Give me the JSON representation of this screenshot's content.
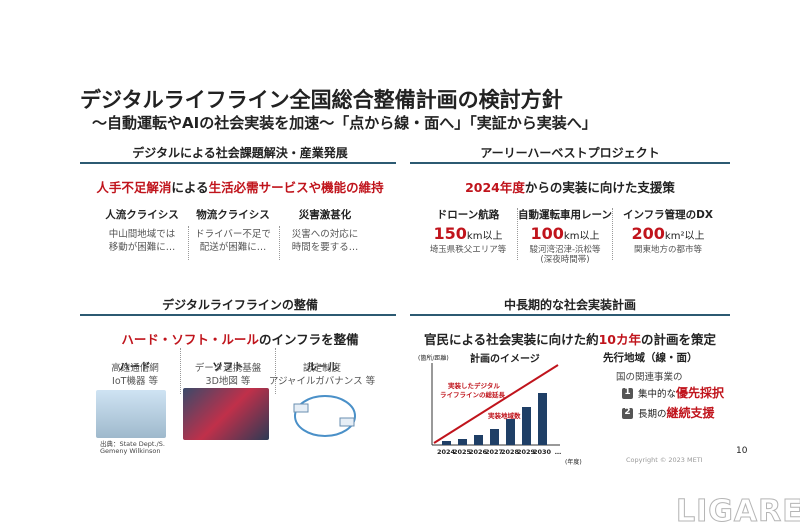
{
  "title": "デジタルライフライン全国総合整備計画の検討方針",
  "subtitle": "～自動運転やAIの社会実装を加速～「点から線・面へ」「実証から実装へ」",
  "sections": [
    {
      "heading": "デジタルによる社会課題解決・産業発展",
      "lead": [
        {
          "text": "人手不足解消",
          "red": true
        },
        {
          "text": "による",
          "red": false
        },
        {
          "text": "生活必需サービスや機能の維持",
          "red": true
        }
      ],
      "items": [
        {
          "title": "人流クライシス",
          "lines": [
            "中山間地域では",
            "移動が困難に…"
          ]
        },
        {
          "title": "物流クライシス",
          "lines": [
            "ドライバー不足で",
            "配送が困難に…"
          ]
        },
        {
          "title": "災害激甚化",
          "lines": [
            "災害への対応に",
            "時間を要する…"
          ]
        }
      ]
    },
    {
      "heading": "アーリーハーベストプロジェクト",
      "lead": [
        {
          "text": "2024年度",
          "red": true
        },
        {
          "text": "からの実装に向けた支援策",
          "red": false
        }
      ],
      "items": [
        {
          "title": "ドローン航路",
          "number": "150",
          "unit": "km以上",
          "lines": [
            "埼玉県秩父エリア等"
          ]
        },
        {
          "title": "自動運転車用レーン",
          "number": "100",
          "unit": "km以上",
          "lines": [
            "駿河湾沼津-浜松等",
            "(深夜時間帯)"
          ]
        },
        {
          "title": "インフラ管理のDX",
          "number": "200",
          "unit": "km²以上",
          "lines": [
            "関東地方の都市等"
          ]
        }
      ]
    },
    {
      "heading": "デジタルライフラインの整備",
      "lead": [
        {
          "text": "ハード・ソフト・ルール",
          "red": true
        },
        {
          "text": "のインフラを整備",
          "red": false
        }
      ],
      "items": [
        {
          "title": "ハード",
          "lines": [
            "高速通信網",
            "IoT機器 等"
          ]
        },
        {
          "title": "ソフト",
          "lines": [
            "データ連携基盤",
            "3D地図 等"
          ]
        },
        {
          "title": "ルール",
          "lines": [
            "認定制度",
            "アジャイルガバナンス 等"
          ]
        }
      ],
      "credit": [
        "出典：State Dept./S.",
        "Gemeny Wilkinson"
      ]
    },
    {
      "heading": "中長期的な社会実装計画",
      "lead": [
        {
          "text": "官民による社会実装に向けた約",
          "red": false
        },
        {
          "text": "10カ年",
          "red": true
        },
        {
          "text": "の計画を策定",
          "red": false
        }
      ],
      "chart": {
        "title": "計画のイメージ",
        "ylabel": "(箇所/距離)",
        "annotations": [
          "実装したデジタル",
          "ライフラインの総延長",
          "実装地域数"
        ],
        "categories": [
          "2024",
          "2025",
          "2026",
          "2027",
          "2028",
          "2029",
          "2030",
          "…"
        ],
        "xlabel": "(年度)"
      },
      "side": {
        "title": "先行地域（線・面）",
        "intro": "国の関連事業の",
        "points": [
          {
            "num": "1",
            "pre": "集中的な",
            "em": "優先採択"
          },
          {
            "num": "2",
            "pre": "長期の",
            "em": "継続支援"
          }
        ]
      }
    }
  ],
  "footer": {
    "copyright": "Copyright © 2023 METI",
    "page": "10",
    "watermark": "LIGARE"
  }
}
